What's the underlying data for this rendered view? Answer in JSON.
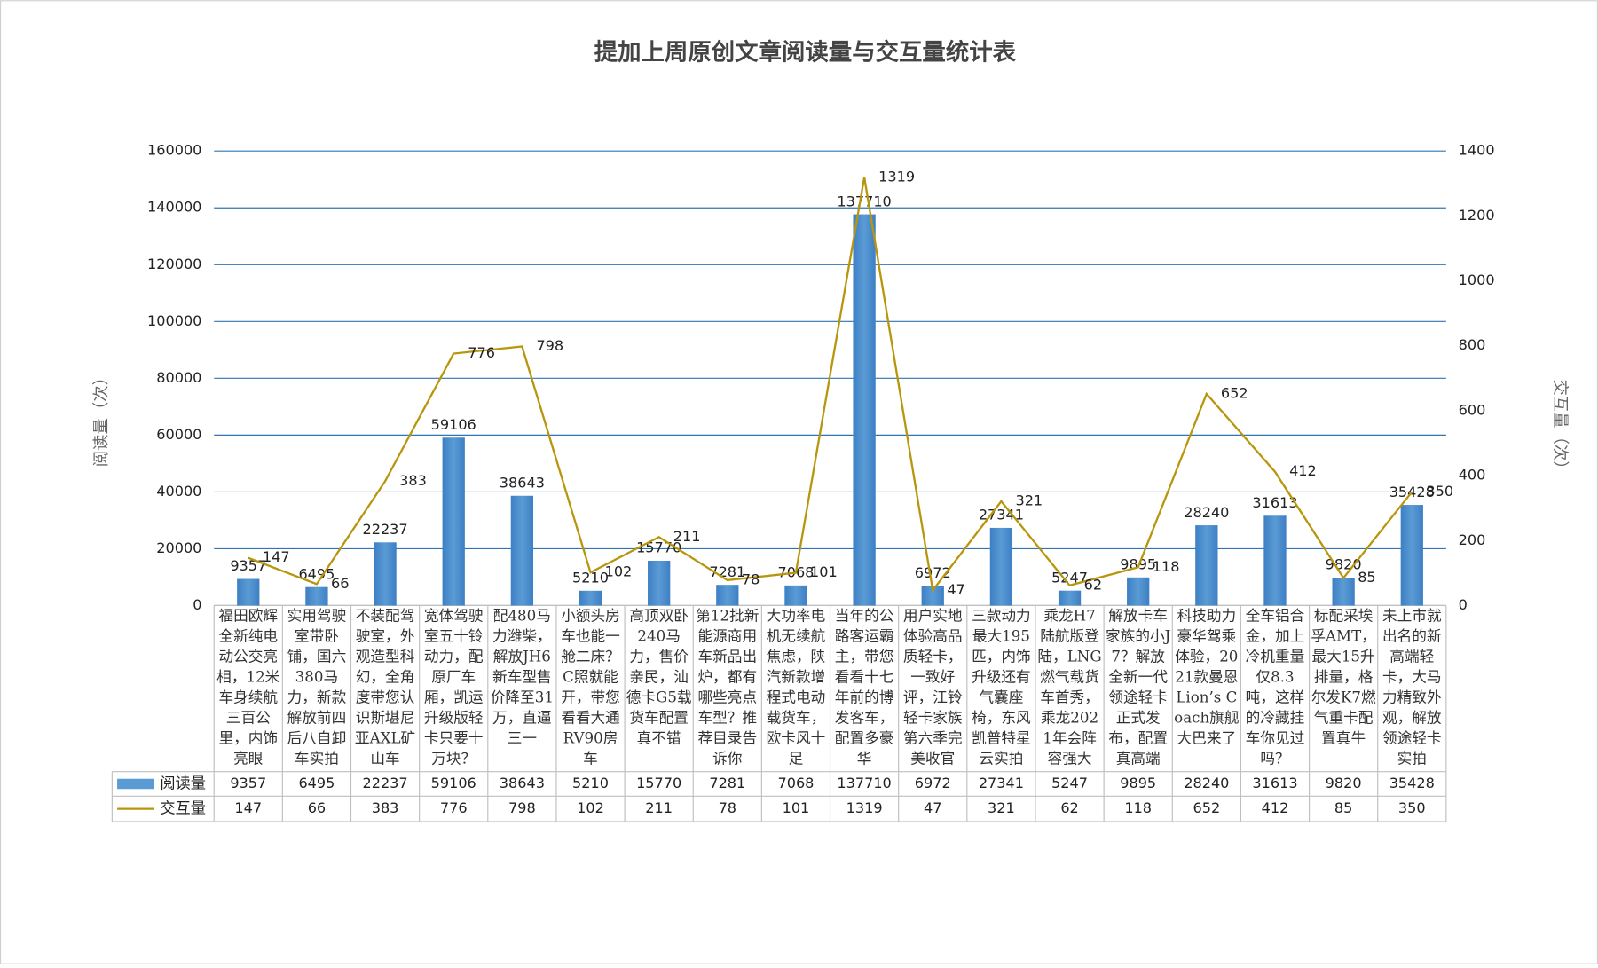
{
  "chart_data": {
    "type": "bar-line",
    "title": "提加上周原创文章阅读量与交互量统计表",
    "y_label": "阅读量（次）",
    "y2_label": "交互量（次）",
    "categories": [
      "福田欧辉全新纯电动公交亮相，12米车身续航三百公里，内饰亮眼",
      "实用驾驶室带卧铺，国六380马力，新款解放前四后八自卸车实拍",
      "不装配驾驶室，外观造型科幻，全角度带您认识斯堪尼亚AXL矿山车",
      "宽体驾驶室五十铃动力，配原厂车厢，凯运升级版轻卡只要十万块？",
      "配480马力潍柴，解放JH6新车型售价降至31万，直逼三一",
      "小额头房车也能一舱二床？C照就能开，带您看看大通RV90房车",
      "高顶双卧240马力，售价亲民，汕德卡G5载货车配置真不错",
      "第12批新能源商用车新品出炉，都有哪些亮点车型？推荐目录告诉你",
      "大功率电机无续航焦虑，陕汽新款增程式电动载货车，欧卡风十足",
      "当年的公路客运霸主，带您看看十七年前的博发客车，配置多豪华",
      "用户实地体验高品质轻卡，一致好评，江铃轻卡家族第六季完美收官",
      "三款动力最大195匹，内饰升级还有气囊座椅，东风凯普特星云实拍",
      "乘龙H7陆航版登陆，LNG燃气载货车首秀，乘龙2021年会阵容强大",
      "解放卡车家族的小J7？解放全新一代领途轻卡正式发布，配置真高端",
      "科技助力豪华驾乘体验，2021款曼恩Lion’s Coach旗舰大巴来了",
      "全车铝合金，加上冷机重量仅8.3吨，这样的冷藏挂车你见过吗？",
      "标配采埃孚AMT，最大15升排量，格尔发K7燃气重卡配置真牛",
      "未上市就出名的新高端轻卡，大马力精致外观，解放领途轻卡实拍"
    ],
    "series": [
      {
        "name": "阅读量",
        "type": "bar",
        "color": "#5b9bd5",
        "values": [
          9357,
          6495,
          22237,
          59106,
          38643,
          5210,
          15770,
          7281,
          7068,
          137710,
          6972,
          27341,
          5247,
          9895,
          28240,
          31613,
          9820,
          35428
        ]
      },
      {
        "name": "交互量",
        "type": "line",
        "axis": "y2",
        "color": "#b8960c",
        "values": [
          147,
          66,
          383,
          776,
          798,
          102,
          211,
          78,
          101,
          1319,
          47,
          321,
          62,
          118,
          652,
          412,
          85,
          350
        ]
      }
    ],
    "ylim": [
      0,
      160000
    ],
    "yticks": [
      0,
      20000,
      40000,
      60000,
      80000,
      100000,
      120000,
      140000,
      160000
    ],
    "y2lim": [
      0,
      1400
    ],
    "y2ticks": [
      0,
      200,
      400,
      600,
      800,
      1000,
      1200,
      1400
    ],
    "grid": true
  }
}
